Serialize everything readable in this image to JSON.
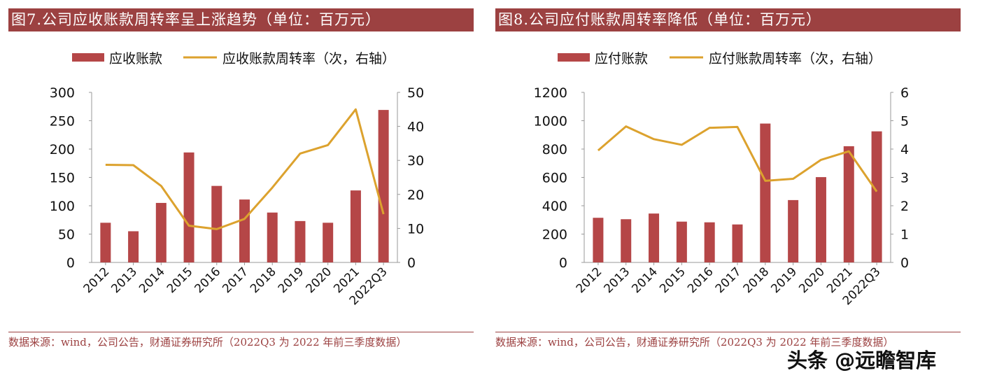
{
  "watermark": "头条 @远瞻智库",
  "colors": {
    "bar": "#b54647",
    "line": "#dca22e",
    "title_bg": "#9c4141",
    "axis": "#999999"
  },
  "chart_data": [
    {
      "type": "bar+line",
      "title": "图7.公司应收账款周转率呈上涨趋势（单位：百万元）",
      "source": "数据来源：wind，公司公告，财通证券研究所（2022Q3 为 2022 年前三季度数据）",
      "categories": [
        "2012",
        "2013",
        "2014",
        "2015",
        "2016",
        "2017",
        "2018",
        "2019",
        "2020",
        "2021",
        "2022Q3"
      ],
      "series": [
        {
          "name": "应收账款",
          "type": "bar",
          "axis": "left",
          "values": [
            70,
            55,
            105,
            194,
            135,
            111,
            88,
            73,
            70,
            127,
            269
          ]
        },
        {
          "name": "应收账款周转率（次，右轴",
          "type": "line",
          "axis": "right",
          "values": [
            28.7,
            28.6,
            22.5,
            10.8,
            9.8,
            12.8,
            22,
            32,
            34.5,
            45,
            14.2
          ]
        }
      ],
      "y_left": {
        "range": [
          0,
          300
        ],
        "ticks": [
          "0",
          "50",
          "100",
          "150",
          "200",
          "250",
          "300"
        ]
      },
      "y_right": {
        "range": [
          0,
          50
        ],
        "ticks": [
          "0",
          "10",
          "20",
          "30",
          "40",
          "50"
        ]
      },
      "legend": "top",
      "grid": false
    },
    {
      "type": "bar+line",
      "title": "图8.公司应付账款周转率降低（单位：百万元）",
      "source": "数据来源：wind，公司公告，财通证券研究所（2022Q3 为 2022 年前三季度数据）",
      "categories": [
        "2012",
        "2013",
        "2014",
        "2015",
        "2016",
        "2017",
        "2018",
        "2019",
        "2020",
        "2021",
        "2022Q3"
      ],
      "series": [
        {
          "name": "应付账款",
          "type": "bar",
          "axis": "left",
          "values": [
            315,
            305,
            345,
            288,
            283,
            268,
            980,
            440,
            602,
            820,
            925
          ]
        },
        {
          "name": "应付账款周转率（次，右轴",
          "type": "line",
          "axis": "right",
          "values": [
            3.95,
            4.8,
            4.35,
            4.15,
            4.75,
            4.78,
            2.88,
            2.95,
            3.62,
            3.92,
            2.5
          ]
        }
      ],
      "y_left": {
        "range": [
          0,
          1200
        ],
        "ticks": [
          "0",
          "200",
          "400",
          "600",
          "800",
          "1000",
          "1200"
        ]
      },
      "y_right": {
        "range": [
          0,
          6
        ],
        "ticks": [
          "0",
          "1",
          "2",
          "3",
          "4",
          "5",
          "6"
        ]
      },
      "legend": "top",
      "grid": false
    }
  ]
}
